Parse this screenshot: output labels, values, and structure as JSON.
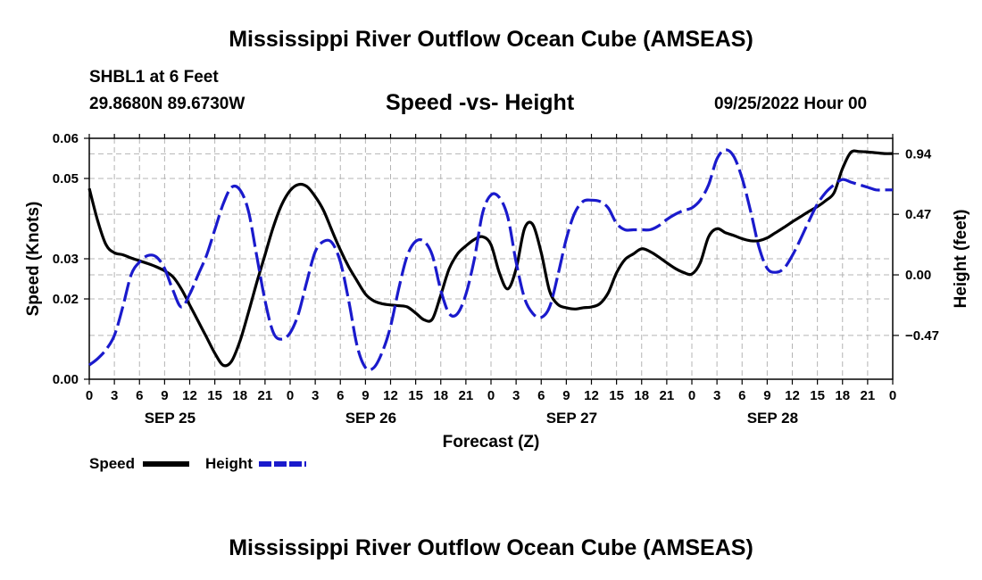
{
  "page": {
    "title_top": "Mississippi River Outflow Ocean Cube (AMSEAS)",
    "title_bottom": "Mississippi River Outflow Ocean Cube (AMSEAS)",
    "station": "SHBL1 at 6 Feet",
    "coords": "29.8680N  89.6730W",
    "subtitle": "Speed -vs- Height",
    "datetime": "09/25/2022 Hour 00"
  },
  "colors": {
    "speed": "#000000",
    "height": "#1a1acc",
    "grid": "#b4b4b4"
  },
  "chart_data": {
    "type": "line",
    "title": "Speed -vs- Height",
    "xlabel": "Forecast (Z)",
    "ylabel": "Speed (Knots)",
    "y2label": "Height (feet)",
    "xlim": [
      0,
      96
    ],
    "ylim": [
      0,
      0.06
    ],
    "y2lim": [
      -0.81,
      1.06
    ],
    "x_ticks": [
      0,
      3,
      6,
      9,
      12,
      15,
      18,
      21,
      24,
      27,
      30,
      33,
      36,
      39,
      42,
      45,
      48,
      51,
      54,
      57,
      60,
      63,
      66,
      69,
      72,
      75,
      78,
      81,
      84,
      87,
      90,
      93,
      96
    ],
    "x_tick_labels": [
      "0",
      "3",
      "6",
      "9",
      "12",
      "15",
      "18",
      "21",
      "0",
      "3",
      "6",
      "9",
      "12",
      "15",
      "18",
      "21",
      "0",
      "3",
      "6",
      "9",
      "12",
      "15",
      "18",
      "21",
      "0",
      "3",
      "6",
      "9",
      "12",
      "15",
      "18",
      "21",
      "0"
    ],
    "day_labels": [
      {
        "x": 9,
        "label": "SEP 25"
      },
      {
        "x": 33,
        "label": "SEP 26"
      },
      {
        "x": 57,
        "label": "SEP 27"
      },
      {
        "x": 81,
        "label": "SEP 28"
      }
    ],
    "y_ticks": [
      0.0,
      0.02,
      0.03,
      0.05,
      0.06
    ],
    "y_tick_labels": [
      "0.00",
      "0.02",
      "0.03",
      "0.05",
      "0.06"
    ],
    "y2_ticks": [
      -0.47,
      0.0,
      0.47,
      0.94
    ],
    "y2_tick_labels": [
      "−0.47",
      "0.00",
      "0.47",
      "0.94"
    ],
    "legend": [
      {
        "name": "Speed",
        "style": "solid"
      },
      {
        "name": "Height",
        "style": "dashed"
      }
    ],
    "series": [
      {
        "name": "Speed",
        "axis": "left",
        "style": "solid",
        "x": [
          0,
          1,
          2,
          3,
          4,
          5,
          6,
          7,
          8,
          9,
          10,
          11,
          12,
          13,
          14,
          15,
          16,
          17,
          18,
          19,
          20,
          21,
          22,
          23,
          24,
          25,
          26,
          27,
          28,
          29,
          30,
          31,
          32,
          33,
          34,
          35,
          36,
          37,
          38,
          39,
          40,
          41,
          42,
          43,
          44,
          45,
          46,
          47,
          48,
          49,
          50,
          51,
          52,
          53,
          54,
          55,
          56,
          57,
          58,
          59,
          60,
          61,
          62,
          63,
          64,
          65,
          66,
          67,
          68,
          69,
          70,
          71,
          72,
          73,
          74,
          75,
          76,
          77,
          78,
          79,
          80,
          81,
          82,
          83,
          84,
          85,
          86,
          87,
          88,
          89,
          90,
          91,
          92,
          93,
          94,
          95,
          96
        ],
        "values": [
          0.0475,
          0.0395,
          0.0335,
          0.0315,
          0.031,
          0.0302,
          0.0295,
          0.0288,
          0.028,
          0.027,
          0.0255,
          0.0225,
          0.0185,
          0.0145,
          0.0105,
          0.0065,
          0.0035,
          0.0045,
          0.0095,
          0.0165,
          0.024,
          0.031,
          0.038,
          0.0435,
          0.047,
          0.0485,
          0.048,
          0.0455,
          0.042,
          0.037,
          0.0322,
          0.028,
          0.0245,
          0.0212,
          0.0195,
          0.0188,
          0.0185,
          0.0183,
          0.018,
          0.0165,
          0.0148,
          0.015,
          0.021,
          0.0275,
          0.0312,
          0.0332,
          0.0348,
          0.0355,
          0.0335,
          0.0265,
          0.0225,
          0.0275,
          0.0375,
          0.0385,
          0.0315,
          0.022,
          0.0186,
          0.0178,
          0.0175,
          0.0178,
          0.018,
          0.0188,
          0.0215,
          0.0265,
          0.0298,
          0.0312,
          0.0325,
          0.0318,
          0.0305,
          0.029,
          0.0276,
          0.0266,
          0.0262,
          0.029,
          0.0355,
          0.0375,
          0.0365,
          0.0358,
          0.035,
          0.0345,
          0.0345,
          0.0352,
          0.0365,
          0.0378,
          0.0392,
          0.0405,
          0.0418,
          0.043,
          0.0445,
          0.0465,
          0.0525,
          0.0565,
          0.0567,
          0.0566,
          0.0564,
          0.0562,
          0.0562
        ]
      },
      {
        "name": "Height",
        "axis": "right",
        "style": "dashed",
        "x": [
          0,
          1,
          2,
          3,
          4,
          5,
          6,
          7,
          8,
          9,
          10,
          11,
          12,
          13,
          14,
          15,
          16,
          17,
          18,
          19,
          20,
          21,
          22,
          23,
          24,
          25,
          26,
          27,
          28,
          29,
          30,
          31,
          32,
          33,
          34,
          35,
          36,
          37,
          38,
          39,
          40,
          41,
          42,
          43,
          44,
          45,
          46,
          47,
          48,
          49,
          50,
          51,
          52,
          53,
          54,
          55,
          56,
          57,
          58,
          59,
          60,
          61,
          62,
          63,
          64,
          65,
          66,
          67,
          68,
          69,
          70,
          71,
          72,
          73,
          74,
          75,
          76,
          77,
          78,
          79,
          80,
          81,
          82,
          83,
          84,
          85,
          86,
          87,
          88,
          89,
          90,
          91,
          92,
          93,
          94,
          95,
          96
        ],
        "values": [
          -0.7,
          -0.65,
          -0.58,
          -0.47,
          -0.25,
          0.0,
          0.1,
          0.15,
          0.14,
          0.05,
          -0.12,
          -0.25,
          -0.15,
          0.0,
          0.15,
          0.35,
          0.55,
          0.68,
          0.66,
          0.5,
          0.15,
          -0.2,
          -0.45,
          -0.5,
          -0.45,
          -0.3,
          -0.05,
          0.18,
          0.26,
          0.25,
          0.1,
          -0.2,
          -0.55,
          -0.72,
          -0.72,
          -0.6,
          -0.4,
          -0.1,
          0.15,
          0.26,
          0.26,
          0.15,
          -0.12,
          -0.3,
          -0.3,
          -0.15,
          0.12,
          0.48,
          0.62,
          0.6,
          0.45,
          0.1,
          -0.18,
          -0.3,
          -0.33,
          -0.25,
          0.0,
          0.28,
          0.48,
          0.57,
          0.58,
          0.57,
          0.52,
          0.4,
          0.35,
          0.35,
          0.35,
          0.35,
          0.38,
          0.43,
          0.47,
          0.5,
          0.52,
          0.58,
          0.7,
          0.9,
          0.97,
          0.92,
          0.75,
          0.5,
          0.22,
          0.05,
          0.02,
          0.05,
          0.15,
          0.28,
          0.42,
          0.55,
          0.64,
          0.7,
          0.74,
          0.72,
          0.7,
          0.68,
          0.66,
          0.66,
          0.66
        ]
      }
    ]
  }
}
